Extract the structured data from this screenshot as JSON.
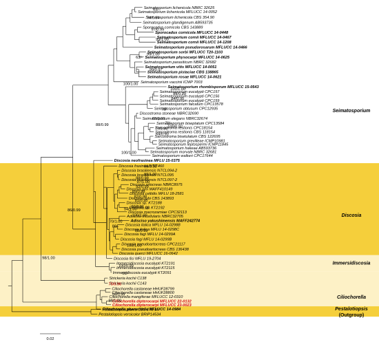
{
  "colors": {
    "band_dark": "#f5cf3b",
    "band_light": "#fdf1c6",
    "branch": "#000000",
    "highlight": "#d40000"
  },
  "clades": [
    {
      "id": "seim",
      "label": "Seimatosporium"
    },
    {
      "id": "disc",
      "label": "Discosia"
    },
    {
      "id": "imm",
      "label": "Immersidiscosia"
    },
    {
      "id": "cil",
      "label": "Ciliochorella"
    },
    {
      "id": "pest",
      "label": "Pestalotiopsis"
    },
    {
      "id": "out",
      "label": "(Outgroup)"
    }
  ],
  "scale": {
    "label": "0.02"
  },
  "taxa": [
    {
      "label": "Seimatosporium lichenicola NBRC 32625"
    },
    {
      "label": "Seimatosporium lichenicola MFLUCC 14-0052"
    },
    {
      "label": "Seimatosporium lichenicola CBS 354.90"
    },
    {
      "label": "Seimatosporium glandigenum AB593735"
    },
    {
      "label": "Sporocadus cornicola CBS 143889"
    },
    {
      "label": "Sporocadus cornicola MFLUCC 14-0448",
      "bold": true
    },
    {
      "label": "Seimatosporium cornii MFLUCC 14-0467",
      "bold": true
    },
    {
      "label": "Seimatosporium cornii MFLUCC 14-1208",
      "bold": true
    },
    {
      "label": "Seimatosporium pseudorosarum MFLUCC 14-0466",
      "bold": true
    },
    {
      "label": "Seimatosporium sorbi MFLUCC T20-1103",
      "bold": true
    },
    {
      "label": "Seimatosporium physocarpi MFLUCC 14-0625",
      "bold": true
    },
    {
      "label": "Seimatosporium parasiticum NBRC 32682"
    },
    {
      "label": "Seimatosporium vitis MFLUCC 14-0051",
      "bold": true
    },
    {
      "label": "Seimatosporium pistaciae CBS 138865",
      "bold": true
    },
    {
      "label": "Seimatosporium rosae MFLUCC 14-0621",
      "bold": true
    },
    {
      "label": "Seimatosporium vaccinii ICMP 7003"
    },
    {
      "label": "Seimatosporium rhombisporum MFLUCC 15-0543",
      "bold": true
    },
    {
      "label": "Seimatosporium eucalypti CPC157"
    },
    {
      "label": "Seimatosporium eucalypti CPC156"
    },
    {
      "label": "Seimatosporium eucalypti CPC159"
    },
    {
      "label": "Seimatosporium falcatum CPC13578"
    },
    {
      "label": "Seimatosporium obtusum CPC12935"
    },
    {
      "label": "Discostroma stoneae NBRC32690"
    },
    {
      "label": "Seimatosporium elegans NBRC32674"
    },
    {
      "label": "Seimatosporium biseptatum CPC13584"
    },
    {
      "label": "Sarcostroma restionis CPC18154"
    },
    {
      "label": "Sarcostroma restionis CBS 118154"
    },
    {
      "label": "Sarcostroma bisetulatum CBS 122695"
    },
    {
      "label": "Seimatosporium grevilleae ICMP10981"
    },
    {
      "label": "Seimatosporium leptospermi ICMP11845"
    },
    {
      "label": "Seimatosporium hakeae AB593736"
    },
    {
      "label": "Seimatosporium morvale NBRC 32681"
    },
    {
      "label": "Seimatosporium walkeri CPC17644"
    },
    {
      "label": "Discosia neofraxinea MFLU 15-0375",
      "bold": true
    },
    {
      "label": "Discosia fraxinea NTIT460"
    },
    {
      "label": "Discosia brasiliensis NTCL094-2"
    },
    {
      "label": "Discosia brasiliensis NTCL095"
    },
    {
      "label": "Discosia brasiliensis NTCL097-2"
    },
    {
      "label": "Discosia artocreas NBRC8975"
    },
    {
      "label": "Discosia pini MAFF410149"
    },
    {
      "label": "Discosia celtidis MFLU 18-2581"
    },
    {
      "label": "Discosia rubi CBS 143893"
    },
    {
      "label": "Discosia sp. KT2188"
    },
    {
      "label": "Discosia sp. KT2192"
    },
    {
      "label": "Discosia macrozamiae CPC32113"
    },
    {
      "label": "Adisciso tricellularis NBRC32705"
    },
    {
      "label": "Adisciso yakushimensis MAFF242774",
      "bold": true
    },
    {
      "label": "Discosia italica MFLU 14-0298B"
    },
    {
      "label": "Discosia italica MFLU 14-0298C"
    },
    {
      "label": "Discosia fagi MFLU 14-0299A"
    },
    {
      "label": "Discosia fagi MFLU 14-0299B"
    },
    {
      "label": "Discosia pseudoartocreas CPC21117"
    },
    {
      "label": "Discosia pseudoartocreas CBS 136438"
    },
    {
      "label": "Discosia querci MFLUCC 16-0642"
    },
    {
      "label": "Discosia fici MFLU 19-2704"
    },
    {
      "label": "Immersidiscosia eucalypti KT2191"
    },
    {
      "label": "Immersidiscosia eucalypti KT2115"
    },
    {
      "label": "Immersidiscosia eucalypti KT2091"
    },
    {
      "label": "Strickeria kochii C138"
    },
    {
      "label": "Strickeria kochii C143"
    },
    {
      "label": "Ciliochorella castaneae HHUF28799"
    },
    {
      "label": "Ciliochorella castaneae HHUF28800"
    },
    {
      "label": "Ciliochorella mangiferae MFLUCC 12-0310"
    },
    {
      "label": "Ciliochorella dipterocarpi MFLUCC 22-0132",
      "red": true
    },
    {
      "label": "Ciliochorella dipterocarpi MFLUCC 23-0023",
      "red": true
    },
    {
      "label": "Ciliochorella phanericola MFLUCC 14-0984",
      "bold": true
    },
    {
      "label": "Pestalotiopsis versicolor BRIP14534"
    },
    {
      "label": "Pestalotiopsis parva CBS 278.35"
    }
  ],
  "supports": [
    {
      "label": "63/-"
    },
    {
      "label": "74/0.94"
    },
    {
      "label": "97/0.99"
    },
    {
      "label": "99/1.00"
    },
    {
      "label": "63/-"
    },
    {
      "label": "99/1.00"
    },
    {
      "label": "99/0.97"
    },
    {
      "label": "100/1.00"
    },
    {
      "label": "89/0.99"
    },
    {
      "label": "84/0.95"
    },
    {
      "label": "100/1.00"
    },
    {
      "label": "78/-"
    },
    {
      "label": "63/0.91"
    },
    {
      "label": "71/-"
    },
    {
      "label": "100/0.92"
    },
    {
      "label": "77/0.90"
    },
    {
      "label": "64/0.90"
    },
    {
      "label": "88/0.99"
    },
    {
      "label": "100/1.00"
    },
    {
      "label": "99/0.98"
    },
    {
      "label": "92/1.00"
    },
    {
      "label": "88/0.99"
    },
    {
      "label": "97/1.00"
    },
    {
      "label": "92/0.99"
    },
    {
      "label": "89/0.98"
    },
    {
      "label": "82/0.98"
    },
    {
      "label": "81/0.95"
    },
    {
      "label": "99/0.91"
    },
    {
      "label": "97/1.00"
    },
    {
      "label": "94/1.00"
    },
    {
      "label": "100/1.00"
    },
    {
      "label": "70/1.00"
    },
    {
      "label": "88/-"
    },
    {
      "label": "68/0.99"
    },
    {
      "label": "86/0.99"
    },
    {
      "label": "100/1.00"
    },
    {
      "label": "98/1.00"
    },
    {
      "label": "100/0.99"
    },
    {
      "label": "60/-"
    },
    {
      "label": "75/0.96",
      "red": true
    },
    {
      "label": "94/0.99"
    },
    {
      "label": "98/1.00"
    }
  ]
}
